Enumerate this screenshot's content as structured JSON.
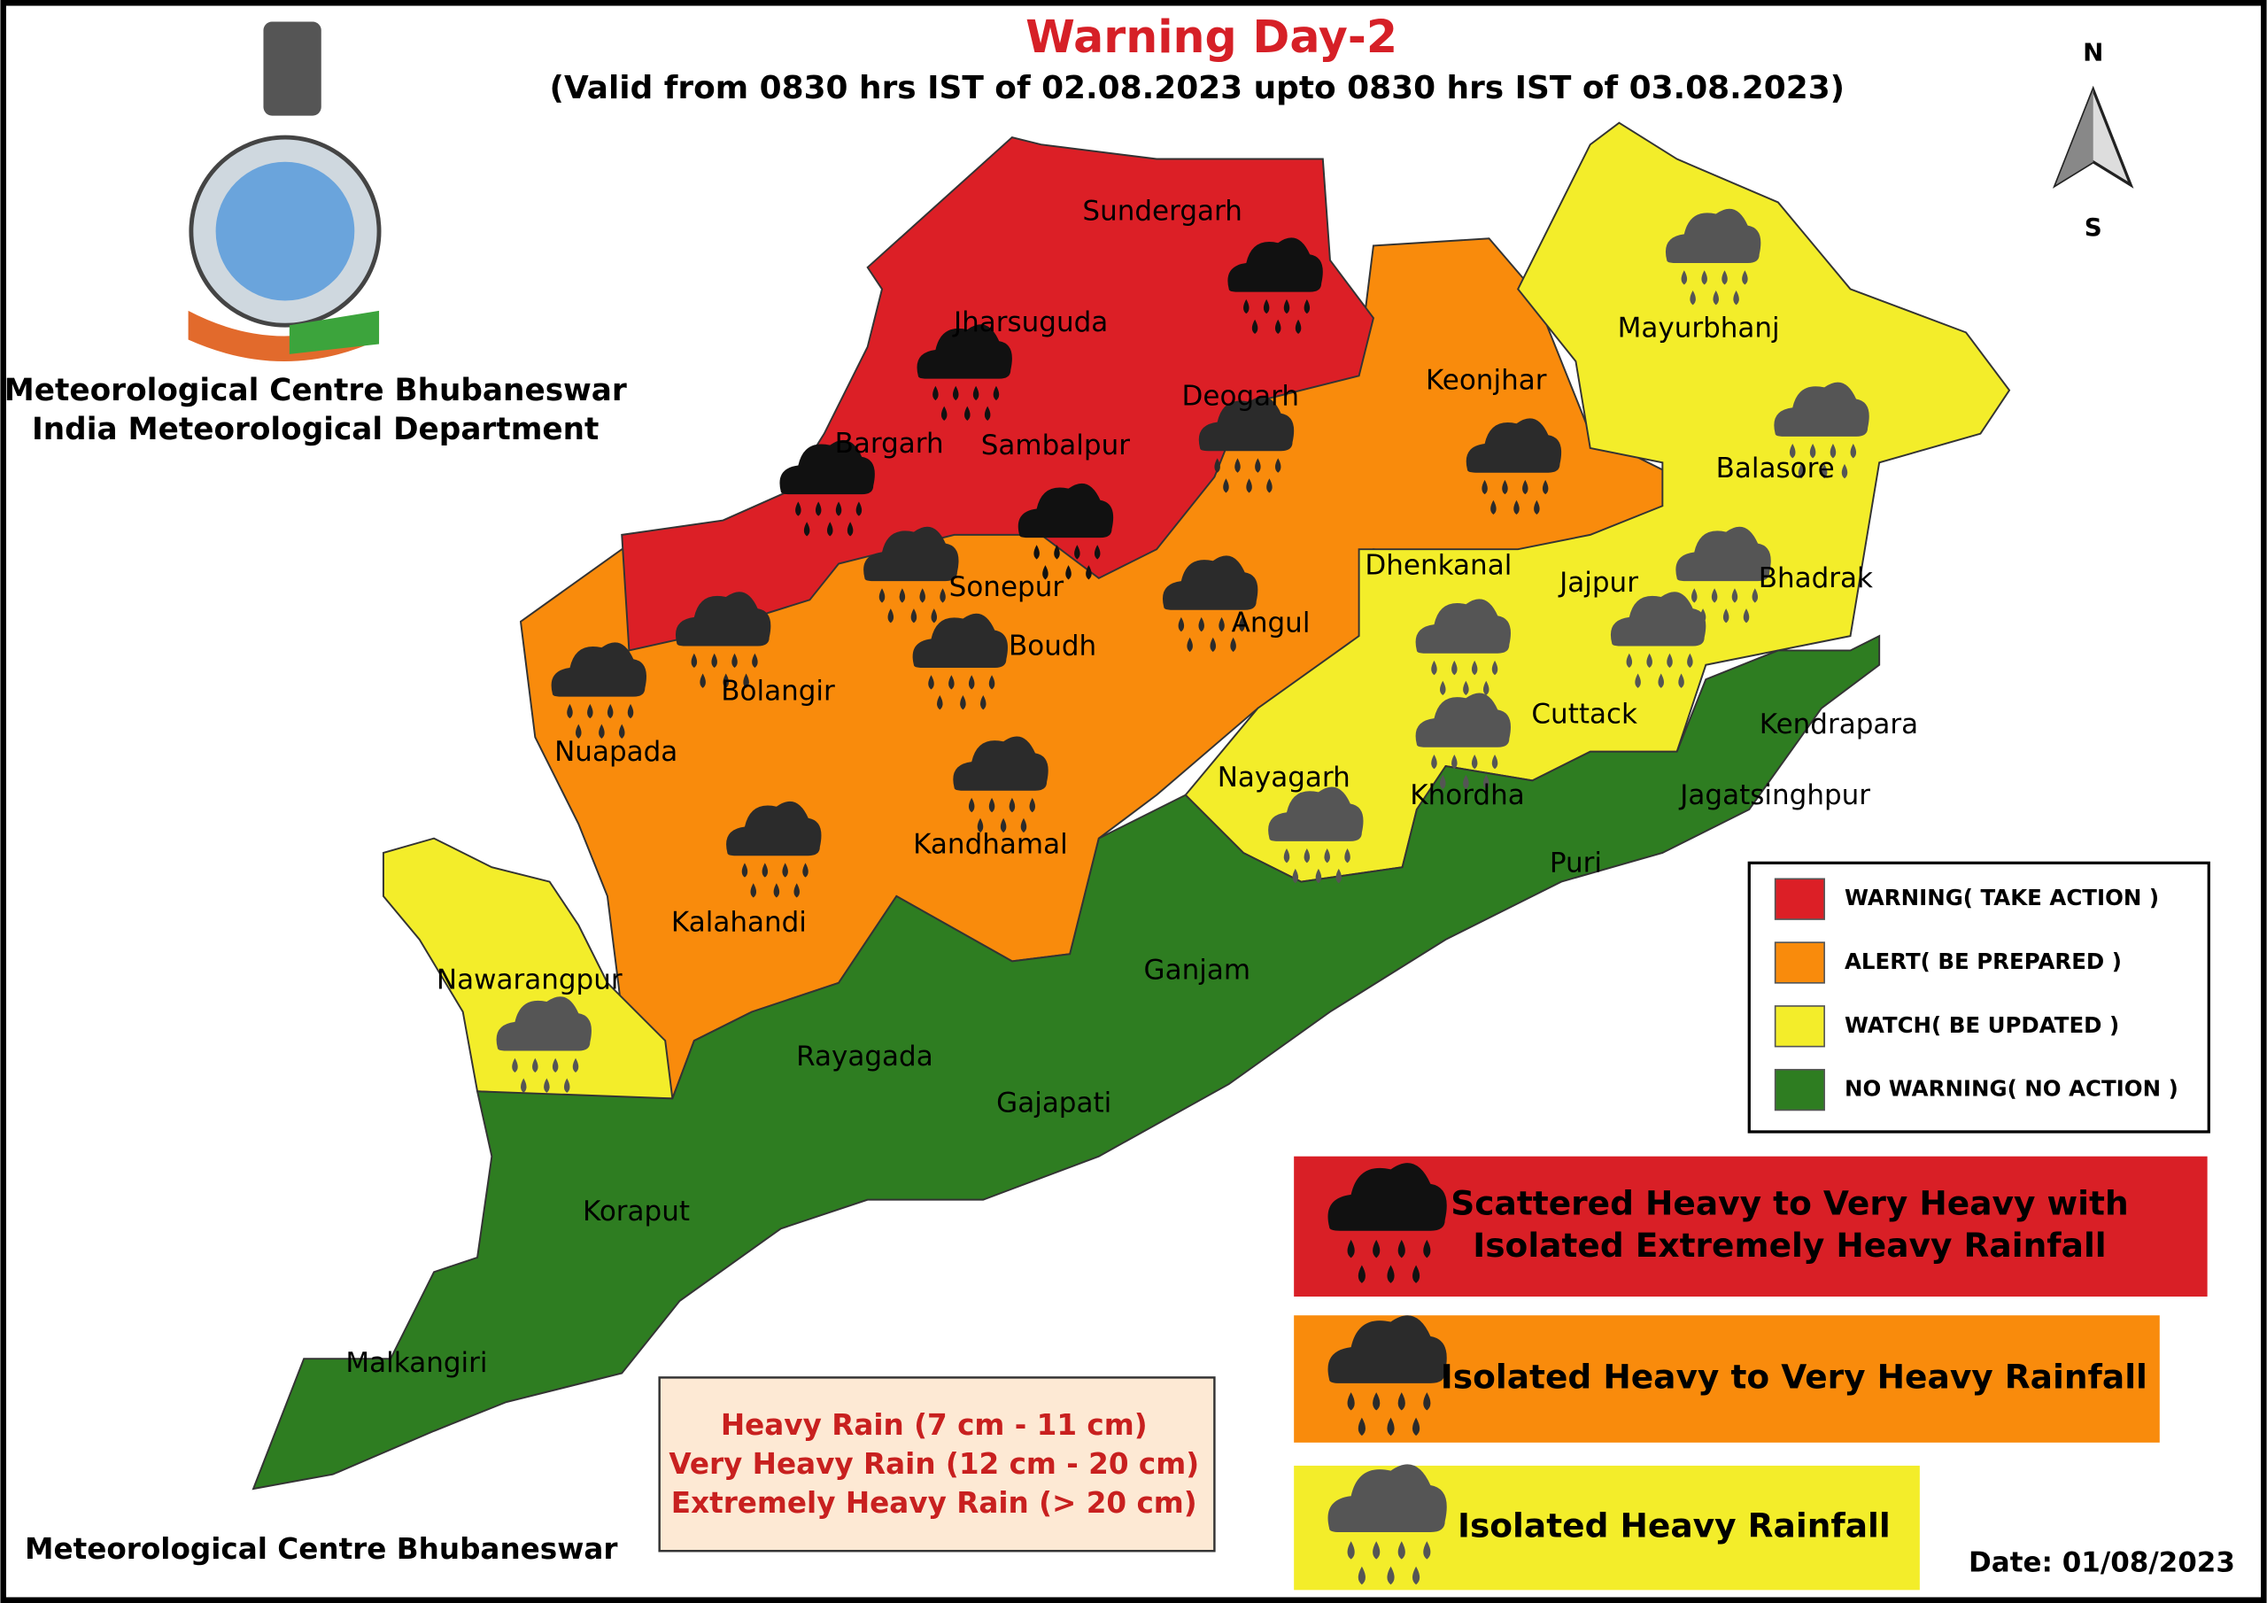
{
  "header": {
    "title": "Warning Day-2",
    "subtitle": "(Valid from 0830 hrs IST of 02.08.2023 upto 0830 hrs IST of 03.08.2023)"
  },
  "organization": [
    "Meteorological Centre Bhubaneswar",
    "India Meteorological Department"
  ],
  "compass": {
    "north": "N",
    "south": "S"
  },
  "districts": [
    "Sundergarh",
    "Jharsuguda",
    "Deogarh",
    "Keonjhar",
    "Mayurbhanj",
    "Bargarh",
    "Sambalpur",
    "Balasore",
    "Dhenkanal",
    "Jajpur",
    "Bhadrak",
    "Sonepur",
    "Angul",
    "Boudh",
    "Bolangir",
    "Cuttack",
    "Kendrapara",
    "Nuapada",
    "Nayagarh",
    "Khordha",
    "Jagatsinghpur",
    "Kandhamal",
    "Puri",
    "Kalahandi",
    "Ganjam",
    "Nawarangpur",
    "Rayagada",
    "Gajapati",
    "Koraput",
    "Malkangiri"
  ],
  "warning_legend": [
    {
      "label": "WARNING( TAKE ACTION )",
      "color": "#dc1f26"
    },
    {
      "label": "ALERT( BE PREPARED )",
      "color": "#f98b0c"
    },
    {
      "label": "WATCH( BE UPDATED )",
      "color": "#f3ed2a"
    },
    {
      "label": "NO WARNING( NO ACTION )",
      "color": "#2e7d21"
    }
  ],
  "rainfall_legend": [
    {
      "label": [
        "Scattered Heavy to Very Heavy with",
        "Isolated Extremely Heavy Rainfall"
      ],
      "color": "#d91f26"
    },
    {
      "label": [
        "Isolated  Heavy to Very Heavy Rainfall"
      ],
      "color": "#f98b0c"
    },
    {
      "label": [
        "Isolated Heavy Rainfall"
      ],
      "color": "#f3ed2a"
    }
  ],
  "intensity": [
    "Heavy Rain (7 cm - 11 cm)",
    "Very Heavy Rain (12 cm - 20 cm)",
    "Extremely Heavy Rain (> 20 cm)"
  ],
  "footer": "Meteorological Centre Bhubaneswar",
  "date": "Date: 01/08/2023"
}
